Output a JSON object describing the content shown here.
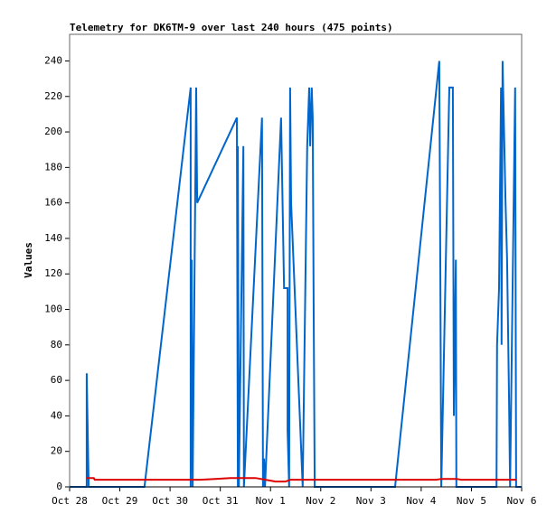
{
  "chart_data": {
    "type": "line",
    "title": "Telemetry for DK6TM-9 over last 240 hours (475 points)",
    "y_label": "Values",
    "xlim": [
      0,
      9
    ],
    "xticks": [
      {
        "value": 0,
        "label": "Oct 28"
      },
      {
        "value": 1,
        "label": "Oct 29"
      },
      {
        "value": 2,
        "label": "Oct 30"
      },
      {
        "value": 3,
        "label": "Oct 31"
      },
      {
        "value": 4,
        "label": "Nov 1"
      },
      {
        "value": 5,
        "label": "Nov 2"
      },
      {
        "value": 6,
        "label": "Nov 3"
      },
      {
        "value": 7,
        "label": "Nov 4"
      },
      {
        "value": 8,
        "label": "Nov 5"
      },
      {
        "value": 9,
        "label": "Nov 6"
      }
    ],
    "ylim": [
      0,
      255
    ],
    "yticks": [
      0,
      20,
      40,
      60,
      80,
      100,
      120,
      140,
      160,
      180,
      200,
      220,
      240
    ],
    "series": [
      {
        "color": "#0066cc",
        "x": [
          0,
          0.34,
          0.34,
          0.36,
          0.38,
          1.49,
          2.41,
          2.41,
          2.43,
          2.45,
          2.52,
          2.54,
          3.33,
          3.35,
          3.35,
          3.37,
          3.46,
          3.47,
          3.83,
          3.85,
          3.87,
          3.89,
          4.21,
          4.25,
          4.27,
          4.34,
          4.34,
          4.37,
          4.39,
          4.41,
          4.64,
          4.73,
          4.77,
          4.79,
          4.82,
          4.84,
          4.86,
          4.88,
          6.48,
          7.36,
          7.38,
          7.4,
          7.56,
          7.63,
          7.65,
          7.69,
          7.7,
          8.5,
          8.51,
          8.55,
          8.59,
          8.6,
          8.62,
          8.68,
          8.71,
          8.75,
          8.77,
          8.87,
          8.89,
          9
        ],
        "values": [
          0,
          0,
          64,
          32,
          0,
          0,
          225,
          0,
          128,
          0,
          225,
          160,
          208,
          0,
          192,
          0,
          192,
          0,
          208,
          0,
          16,
          0,
          208,
          144,
          112,
          112,
          32,
          0,
          225,
          160,
          0,
          192,
          225,
          192,
          225,
          208,
          96,
          0,
          0,
          240,
          128,
          0,
          225,
          225,
          40,
          128,
          0,
          0,
          80,
          112,
          225,
          80,
          240,
          160,
          128,
          48,
          0,
          225,
          0,
          0
        ]
      },
      {
        "color": "#dd0000",
        "x": [
          0.34,
          0.48,
          0.5,
          2.6,
          2.9,
          3.2,
          3.7,
          3.9,
          4.1,
          4.3,
          4.4,
          7.3,
          7.4,
          7.7,
          7.8,
          8.89
        ],
        "values": [
          5,
          5,
          4,
          4,
          4.5,
          5,
          5,
          4,
          3,
          3,
          4,
          4,
          4.5,
          4.5,
          4,
          4
        ]
      }
    ]
  }
}
